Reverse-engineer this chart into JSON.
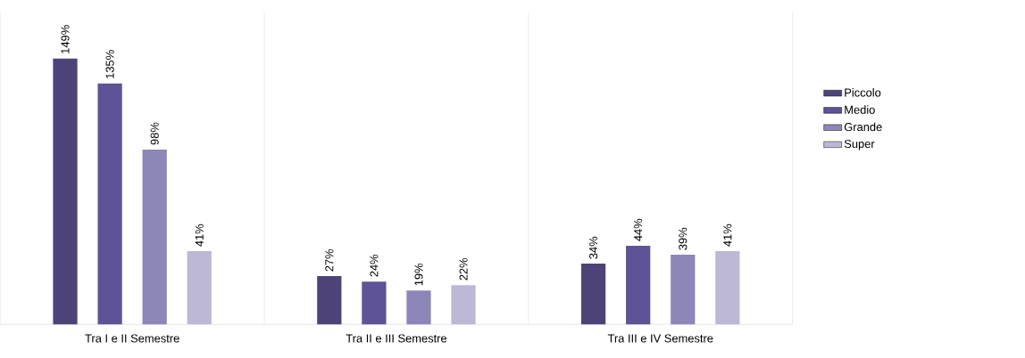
{
  "chart_data": {
    "type": "bar",
    "categories": [
      "Tra I e II Semestre",
      "Tra II e III Semestre",
      "Tra III e IV Semestre"
    ],
    "series": [
      {
        "name": "Piccolo",
        "color": "#4e4379",
        "values": [
          149,
          27,
          34
        ],
        "value_labels": [
          "149%",
          "27%",
          "34%"
        ]
      },
      {
        "name": "Medio",
        "color": "#5f5397",
        "values": [
          135,
          24,
          44
        ],
        "value_labels": [
          "135%",
          "24%",
          "44%"
        ]
      },
      {
        "name": "Grande",
        "color": "#8d86b8",
        "values": [
          98,
          19,
          39
        ],
        "value_labels": [
          "98%",
          "19%",
          "39%"
        ]
      },
      {
        "name": "Super",
        "color": "#bdb8d5",
        "values": [
          41,
          22,
          41
        ],
        "value_labels": [
          "41%",
          "22%",
          "41%"
        ]
      }
    ],
    "grid": "x",
    "legend": "right"
  }
}
